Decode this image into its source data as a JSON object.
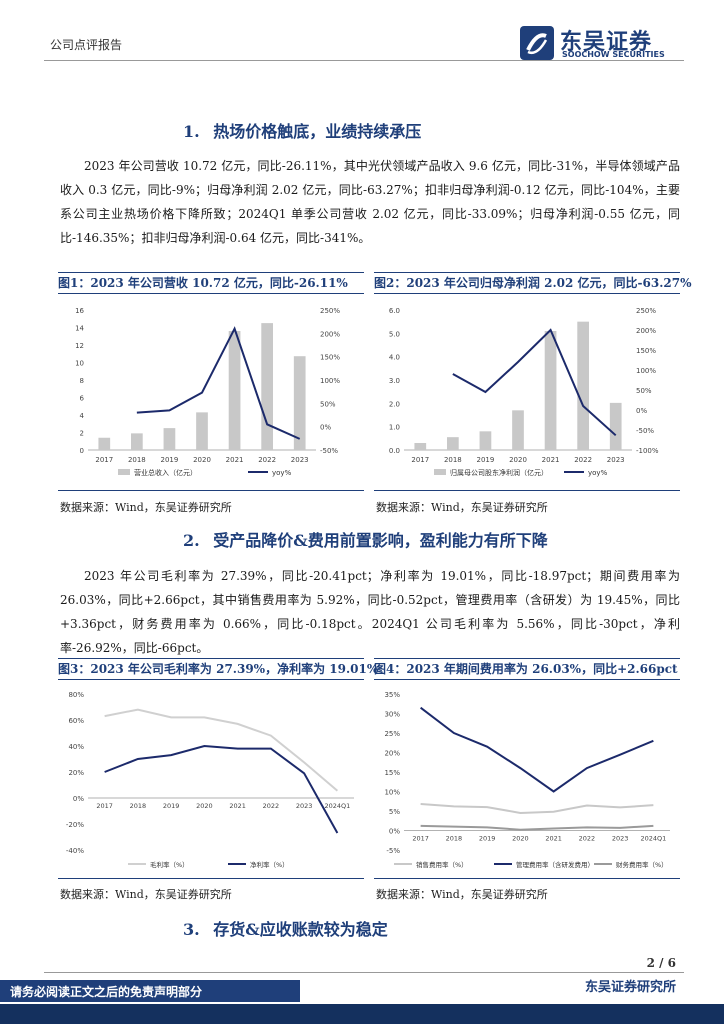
{
  "header": {
    "section_label": "公司点评报告",
    "logo_cn": "东吴证券",
    "logo_en": "SOOCHOW SECURITIES"
  },
  "sections": [
    {
      "num": "1.",
      "title": "热场价格触底，业绩持续承压"
    },
    {
      "num": "2.",
      "title": "受产品降价&费用前置影响，盈利能力有所下降"
    },
    {
      "num": "3.",
      "title": "存货&应收账款较为稳定"
    }
  ],
  "paragraphs": {
    "p1": "2023 年公司营收 10.72 亿元，同比-26.11%，其中光伏领域产品收入 9.6 亿元，同比-31%，半导体领域产品收入 0.3 亿元，同比-9%；归母净利润 2.02 亿元，同比-63.27%；扣非归母净利润-0.12 亿元，同比-104%，主要系公司主业热场价格下降所致；2024Q1 单季公司营收 2.02 亿元，同比-33.09%；归母净利润-0.55 亿元，同比-146.35%；扣非归母净利润-0.64 亿元，同比-341%。",
    "p2": "2023 年公司毛利率为 27.39%，同比-20.41pct；净利率为 19.01%，同比-18.97pct；期间费用率为 26.03%，同比+2.66pct，其中销售费用率为 5.92%，同比-0.52pct，管理费用率（含研发）为 19.45%，同比+3.36pct，财务费用率为 0.66%，同比-0.18pct。2024Q1 公司毛利率为 5.56%，同比-30pct，净利率-26.92%，同比-66pct。"
  },
  "figures": {
    "fig1_title": "图1：2023 年公司营收 10.72 亿元，同比-26.11%",
    "fig2_title": "图2：2023 年公司归母净利润 2.02 亿元，同比-63.27%",
    "fig3_title": "图3：2023 年公司毛利率为 27.39%，净利率为 19.01%",
    "fig4_title": "图4：2023 年期间费用率为 26.03%，同比+2.66pct",
    "source": "数据来源：Wind，东吴证券研究所"
  },
  "chart_data": [
    {
      "type": "bar",
      "categories": [
        "2017",
        "2018",
        "2019",
        "2020",
        "2021",
        "2022",
        "2023"
      ],
      "series": [
        {
          "name": "营业总收入（亿元）",
          "axis": "left",
          "type": "bar",
          "values": [
            1.4,
            1.9,
            2.5,
            4.3,
            13.6,
            14.5,
            10.72
          ]
        },
        {
          "name": "yoy%",
          "axis": "right",
          "type": "line",
          "values": [
            null,
            30,
            35,
            73,
            210,
            5,
            -26.11
          ]
        }
      ],
      "ylim_left": [
        0,
        16
      ],
      "ylim_right": [
        -50,
        250
      ],
      "left_ticks": [
        "0",
        "2",
        "4",
        "6",
        "8",
        "10",
        "12",
        "14",
        "16"
      ],
      "right_ticks": [
        "-50%",
        "0%",
        "50%",
        "100%",
        "150%",
        "200%",
        "250%"
      ],
      "colors": {
        "bar": "#c8c8c8",
        "line": "#1c2a6b"
      }
    },
    {
      "type": "bar",
      "categories": [
        "2017",
        "2018",
        "2019",
        "2020",
        "2021",
        "2022",
        "2023"
      ],
      "series": [
        {
          "name": "归属母公司股东净利润（亿元）",
          "axis": "left",
          "type": "bar",
          "values": [
            0.3,
            0.55,
            0.8,
            1.7,
            5.1,
            5.5,
            2.02
          ]
        },
        {
          "name": "yoy%",
          "axis": "right",
          "type": "line",
          "values": [
            null,
            90,
            45,
            120,
            200,
            10,
            -63.27
          ]
        }
      ],
      "ylim_left": [
        0,
        6
      ],
      "ylim_right": [
        -100,
        250
      ],
      "left_ticks": [
        "0.0",
        "1.0",
        "2.0",
        "3.0",
        "4.0",
        "5.0",
        "6.0"
      ],
      "right_ticks": [
        "-100%",
        "-50%",
        "0%",
        "50%",
        "100%",
        "150%",
        "200%",
        "250%"
      ],
      "colors": {
        "bar": "#c8c8c8",
        "line": "#1c2a6b"
      }
    },
    {
      "type": "line",
      "categories": [
        "2017",
        "2018",
        "2019",
        "2020",
        "2021",
        "2022",
        "2023",
        "2024Q1"
      ],
      "series": [
        {
          "name": "毛利率（%）",
          "values": [
            63,
            68,
            62,
            62,
            57,
            48,
            27.39,
            5.56
          ],
          "color": "#d0d0d0"
        },
        {
          "name": "净利率（%）",
          "values": [
            20,
            30,
            33,
            40,
            38,
            38,
            19.01,
            -26.92
          ],
          "color": "#1c2a6b"
        }
      ],
      "ylim": [
        -40,
        80
      ],
      "ticks": [
        "-40%",
        "-20%",
        "0%",
        "20%",
        "40%",
        "60%",
        "80%"
      ]
    },
    {
      "type": "line",
      "categories": [
        "2017",
        "2018",
        "2019",
        "2020",
        "2021",
        "2022",
        "2023",
        "2024Q1"
      ],
      "series": [
        {
          "name": "销售费用率（%）",
          "values": [
            6.8,
            6.2,
            6.0,
            4.5,
            4.8,
            6.4,
            5.92,
            6.5
          ],
          "color": "#c8c8c8"
        },
        {
          "name": "管理费用率（含研发费用）",
          "values": [
            31.5,
            25,
            21.5,
            16,
            10,
            16,
            19.45,
            23
          ],
          "color": "#1c2a6b"
        },
        {
          "name": "财务费用率（%）",
          "values": [
            1.2,
            1.0,
            0.8,
            0.2,
            0.5,
            0.8,
            0.66,
            1.2
          ],
          "color": "#9a9a9a"
        }
      ],
      "ylim": [
        -5,
        35
      ],
      "ticks": [
        "-5%",
        "0%",
        "5%",
        "10%",
        "15%",
        "20%",
        "25%",
        "30%",
        "35%"
      ]
    }
  ],
  "footer": {
    "page": "2 / 6",
    "org": "东吴证券研究所",
    "disclaimer": "请务必阅读正文之后的免责声明部分"
  }
}
